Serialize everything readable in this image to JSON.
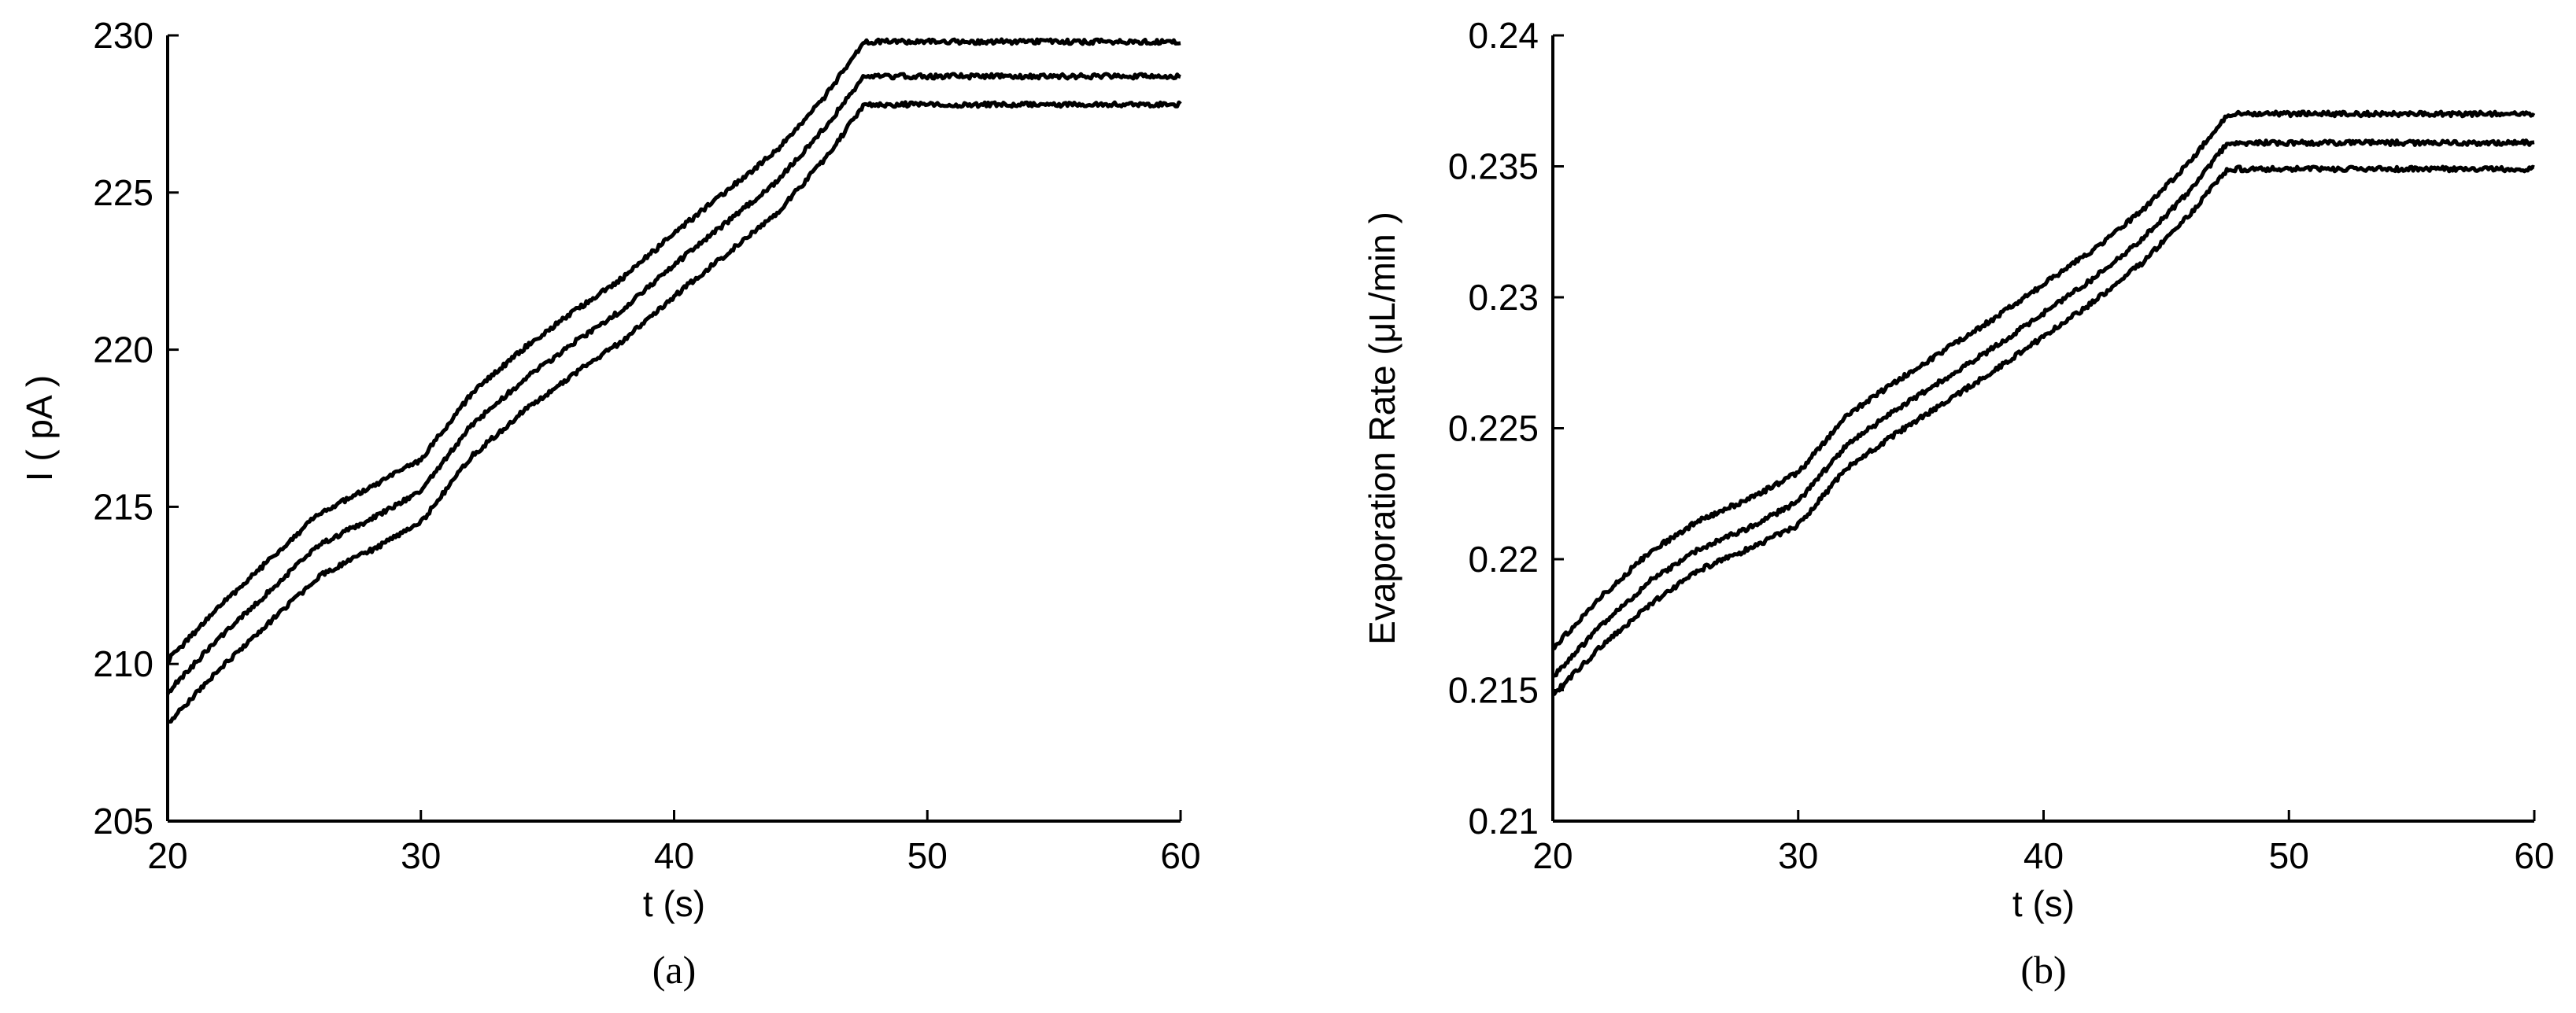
{
  "chart_data": [
    {
      "type": "line",
      "caption": "(a)",
      "xlabel": "t (s)",
      "ylabel": "I ( pA )",
      "xlim": [
        20,
        60
      ],
      "ylim": [
        205,
        230
      ],
      "xticks": [
        20,
        30,
        40,
        50,
        60
      ],
      "yticks": [
        205,
        210,
        215,
        220,
        225,
        230
      ],
      "ytick_labels": [
        "205",
        "210",
        "215",
        "220",
        "225",
        "230"
      ],
      "grid": false,
      "legend": "none",
      "series": [
        {
          "x": [
            20,
            22,
            24,
            26,
            28,
            30,
            32,
            34,
            36,
            38,
            40,
            42,
            44,
            46,
            47.5,
            50,
            55,
            60
          ],
          "values": [
            210.1,
            211.8,
            213.3,
            214.8,
            215.6,
            216.5,
            218.6,
            220.0,
            221.2,
            222.3,
            223.7,
            225.0,
            226.3,
            228.1,
            229.8,
            229.8,
            229.8,
            229.8
          ],
          "color": "#000000"
        },
        {
          "x": [
            20,
            22,
            24,
            26,
            28,
            30,
            32,
            34,
            36,
            38,
            40,
            42,
            44,
            46,
            47.5,
            50,
            55,
            60
          ],
          "values": [
            209.1,
            210.8,
            212.3,
            213.8,
            214.6,
            215.5,
            217.6,
            219.0,
            220.2,
            221.3,
            222.7,
            224.0,
            225.3,
            227.1,
            228.7,
            228.7,
            228.7,
            228.7
          ],
          "color": "#000000"
        },
        {
          "x": [
            20,
            22,
            24,
            26,
            28,
            30,
            32,
            34,
            36,
            38,
            40,
            42,
            44,
            46,
            47.5,
            50,
            55,
            60
          ],
          "values": [
            208.1,
            209.8,
            211.3,
            212.8,
            213.6,
            214.5,
            216.6,
            218.0,
            219.2,
            220.3,
            221.7,
            223.0,
            224.3,
            226.1,
            227.8,
            227.8,
            227.8,
            227.8
          ],
          "color": "#000000"
        }
      ]
    },
    {
      "type": "line",
      "caption": "(b)",
      "xlabel": "t (s)",
      "ylabel": "Evaporation Rate (μL/min )",
      "xlim": [
        20,
        60
      ],
      "ylim": [
        0.21,
        0.24
      ],
      "xticks": [
        20,
        30,
        40,
        50,
        60
      ],
      "yticks": [
        0.21,
        0.215,
        0.22,
        0.225,
        0.23,
        0.235,
        0.24
      ],
      "ytick_labels": [
        "0.21",
        "0.215",
        "0.22",
        "0.225",
        "0.23",
        "0.235",
        "0.24"
      ],
      "grid": false,
      "legend": "none",
      "series": [
        {
          "x": [
            20,
            22,
            24,
            26,
            28,
            30,
            32,
            34,
            36,
            38,
            40,
            42,
            44,
            46,
            47.5,
            50,
            55,
            60
          ],
          "values": [
            0.2166,
            0.2186,
            0.2203,
            0.2215,
            0.2223,
            0.2233,
            0.2255,
            0.2268,
            0.228,
            0.2292,
            0.2305,
            0.2318,
            0.2333,
            0.2352,
            0.237,
            0.237,
            0.237,
            0.237
          ],
          "color": "#000000"
        },
        {
          "x": [
            20,
            22,
            24,
            26,
            28,
            30,
            32,
            34,
            36,
            38,
            40,
            42,
            44,
            46,
            47.5,
            50,
            55,
            60
          ],
          "values": [
            0.2155,
            0.2175,
            0.2192,
            0.2204,
            0.2212,
            0.2222,
            0.2244,
            0.2257,
            0.2269,
            0.2281,
            0.2294,
            0.2307,
            0.2322,
            0.2341,
            0.2359,
            0.2359,
            0.2359,
            0.2359
          ],
          "color": "#000000"
        },
        {
          "x": [
            20,
            22,
            24,
            26,
            28,
            30,
            32,
            34,
            36,
            38,
            40,
            42,
            44,
            46,
            47.5,
            50,
            55,
            60
          ],
          "values": [
            0.2148,
            0.2167,
            0.2183,
            0.2196,
            0.2204,
            0.2213,
            0.2235,
            0.2248,
            0.226,
            0.2272,
            0.2285,
            0.2298,
            0.2313,
            0.2332,
            0.2349,
            0.2349,
            0.2349,
            0.2349
          ],
          "color": "#000000"
        }
      ]
    }
  ]
}
